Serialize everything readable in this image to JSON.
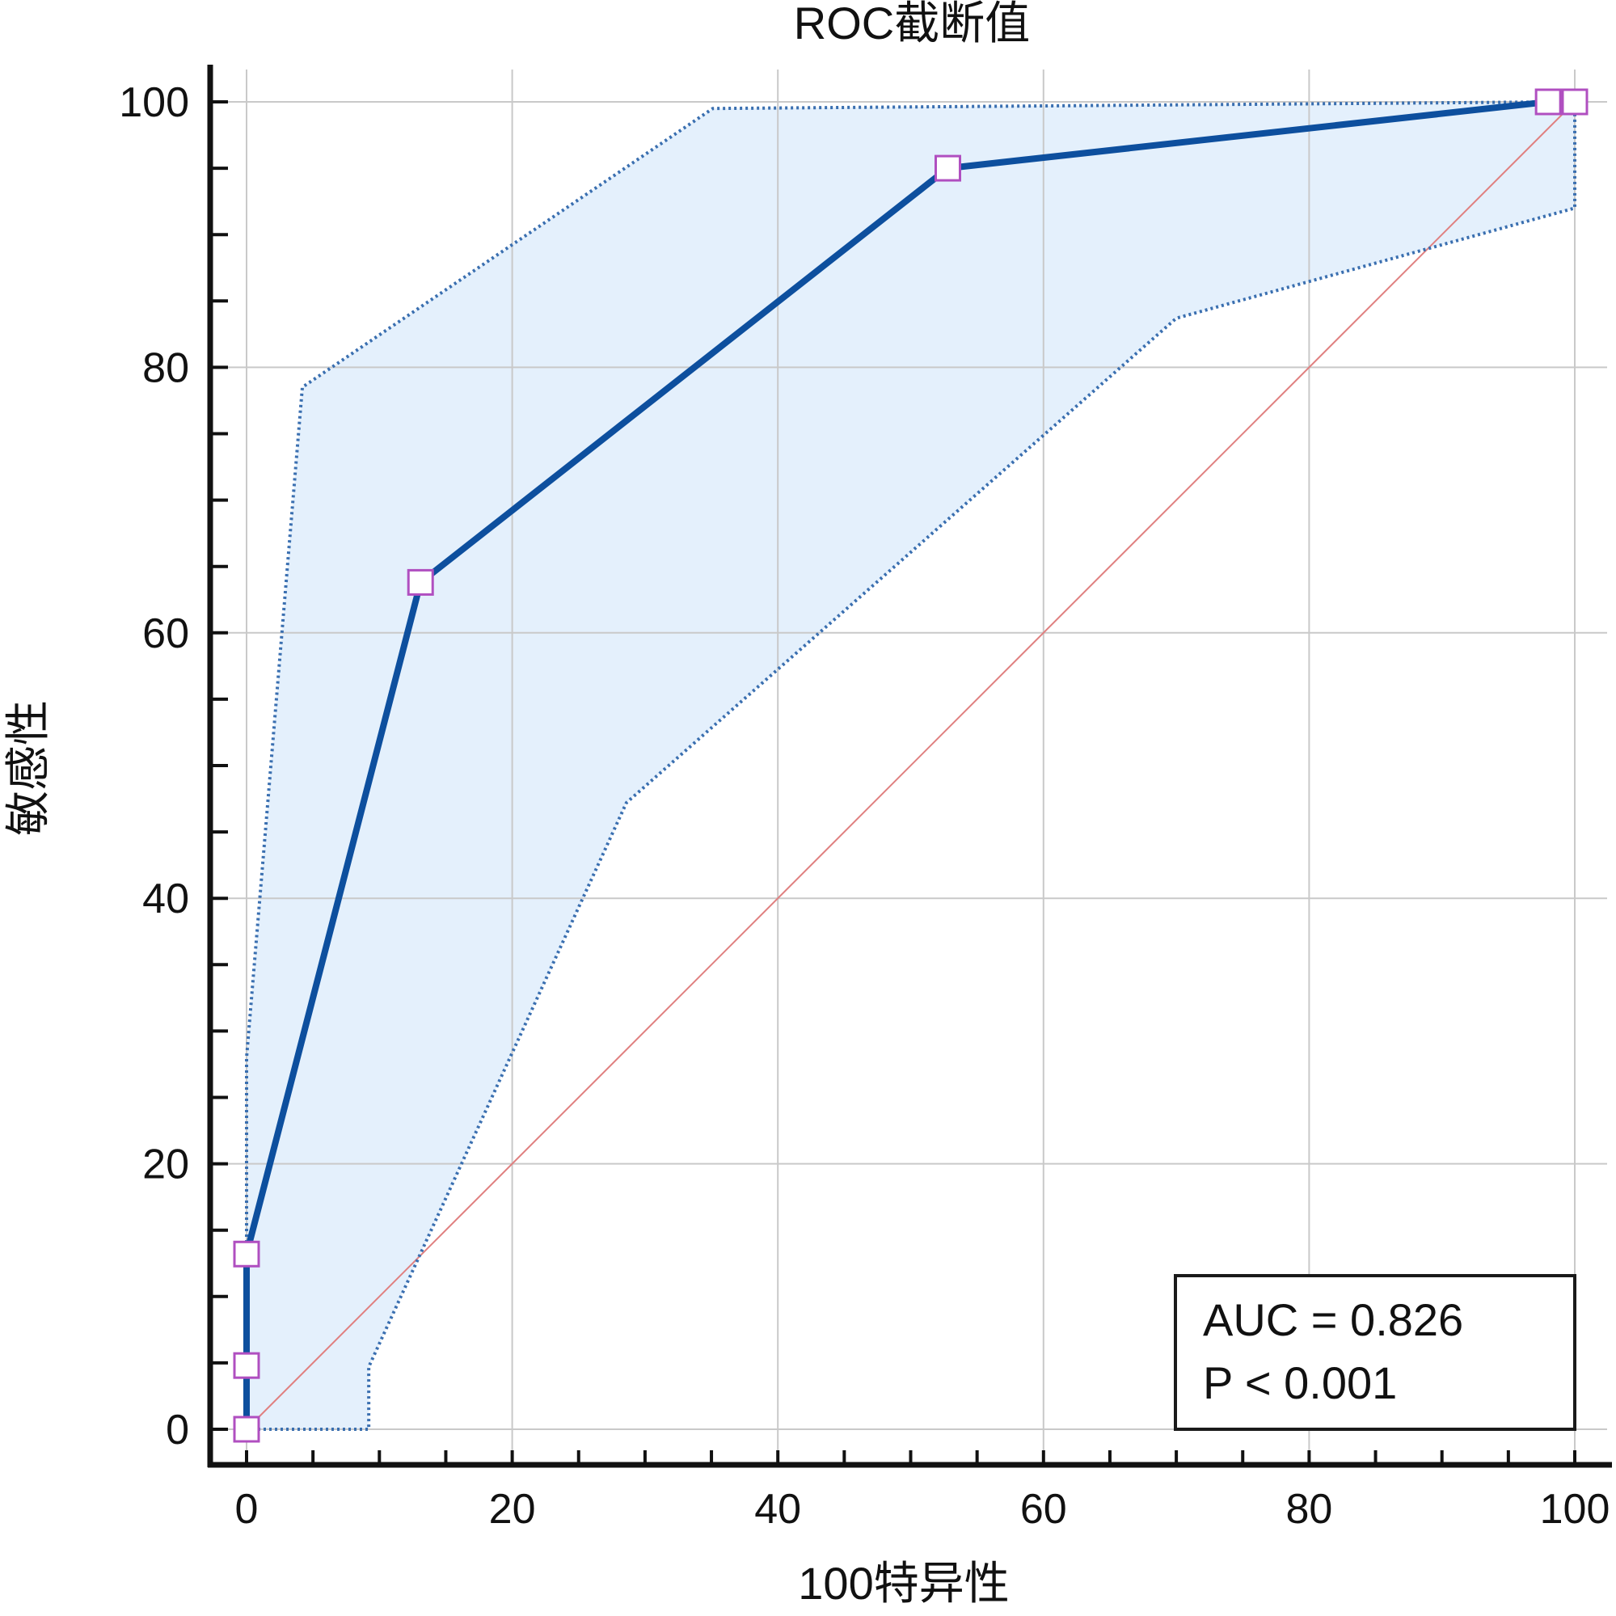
{
  "chart_data": {
    "type": "line",
    "title": "ROC截断值",
    "xlabel": "100特异性",
    "ylabel": "敏感性",
    "xlim": [
      0,
      100
    ],
    "ylim": [
      0,
      100
    ],
    "x_ticks": [
      0,
      20,
      40,
      60,
      80,
      100
    ],
    "y_ticks": [
      0,
      20,
      40,
      60,
      80,
      100
    ],
    "x_tick_labels": [
      "0",
      "20",
      "40",
      "60",
      "80",
      "100"
    ],
    "y_tick_labels": [
      "0",
      "20",
      "40",
      "60",
      "80",
      "100"
    ],
    "grid": true,
    "series": [
      {
        "role": "roc-curve",
        "color": "#0d4f9e",
        "x": [
          0,
          0,
          0,
          13.1,
          52.8,
          98.0,
          100
        ],
        "y": [
          0,
          4.8,
          13.2,
          63.8,
          95.0,
          100,
          100
        ],
        "markers": true
      },
      {
        "role": "ci-upper",
        "color": "#3a6fb0",
        "x": [
          0,
          0,
          4.2,
          35.1,
          99.0,
          100
        ],
        "y": [
          0,
          28.0,
          78.5,
          99.5,
          100,
          100
        ]
      },
      {
        "role": "ci-lower",
        "color": "#3a6fb0",
        "x": [
          0,
          9.2,
          9.2,
          28.6,
          70.0,
          100,
          100
        ],
        "y": [
          0,
          0,
          4.7,
          47.2,
          83.7,
          92.0,
          100
        ]
      },
      {
        "role": "reference-diagonal",
        "color": "#e08080",
        "x": [
          0,
          100
        ],
        "y": [
          0,
          100
        ]
      }
    ],
    "ci_fill_color": "#e4f0fc",
    "marker_color": "#b04fc0",
    "annotations": [
      {
        "id": "auc",
        "text": "AUC = 0.826"
      },
      {
        "id": "p",
        "text": "P < 0.001"
      }
    ],
    "stats_placement": "bottom-right"
  }
}
